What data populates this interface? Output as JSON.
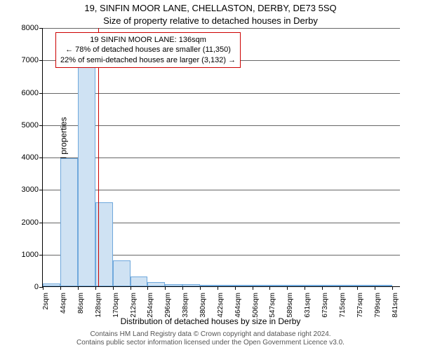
{
  "title_line1": "19, SINFIN MOOR LANE, CHELLASTON, DERBY, DE73 5SQ",
  "title_line2": "Size of property relative to detached houses in Derby",
  "y_axis_label": "Number of detached properties",
  "x_axis_title": "Distribution of detached houses by size in Derby",
  "attribution_line1": "Contains HM Land Registry data © Crown copyright and database right 2024.",
  "attribution_line2": "Contains public sector information licensed under the Open Government Licence v3.0.",
  "chart": {
    "type": "histogram",
    "ylim": [
      0,
      8000
    ],
    "ytick_step": 1000,
    "y_ticks": [
      0,
      1000,
      2000,
      3000,
      4000,
      5000,
      6000,
      7000,
      8000
    ],
    "bar_fill": "#cfe2f3",
    "bar_border": "#6fa8dc",
    "grid_color": "#000000",
    "background_color": "#ffffff",
    "reference_line_color": "#cc0000",
    "reference_value_sqm": 136,
    "x_tick_labels": [
      "2sqm",
      "44sqm",
      "86sqm",
      "128sqm",
      "170sqm",
      "212sqm",
      "254sqm",
      "296sqm",
      "338sqm",
      "380sqm",
      "422sqm",
      "464sqm",
      "506sqm",
      "547sqm",
      "589sqm",
      "631sqm",
      "673sqm",
      "715sqm",
      "757sqm",
      "799sqm",
      "841sqm"
    ],
    "x_tick_step_sqm": 42,
    "x_range_sqm": [
      2,
      862
    ],
    "bars": [
      {
        "x_sqm": 2,
        "count": 80
      },
      {
        "x_sqm": 44,
        "count": 3950
      },
      {
        "x_sqm": 86,
        "count": 6800
      },
      {
        "x_sqm": 128,
        "count": 2600
      },
      {
        "x_sqm": 170,
        "count": 800
      },
      {
        "x_sqm": 212,
        "count": 300
      },
      {
        "x_sqm": 254,
        "count": 120
      },
      {
        "x_sqm": 296,
        "count": 70
      },
      {
        "x_sqm": 338,
        "count": 60
      },
      {
        "x_sqm": 380,
        "count": 40
      },
      {
        "x_sqm": 422,
        "count": 25
      },
      {
        "x_sqm": 464,
        "count": 15
      },
      {
        "x_sqm": 506,
        "count": 10
      },
      {
        "x_sqm": 547,
        "count": 8
      },
      {
        "x_sqm": 589,
        "count": 6
      },
      {
        "x_sqm": 631,
        "count": 5
      },
      {
        "x_sqm": 673,
        "count": 4
      },
      {
        "x_sqm": 715,
        "count": 3
      },
      {
        "x_sqm": 757,
        "count": 2
      },
      {
        "x_sqm": 799,
        "count": 2
      },
      {
        "x_sqm": 841,
        "count": 0
      }
    ]
  },
  "info_box": {
    "line1": "19 SINFIN MOOR LANE: 136sqm",
    "line2": "← 78% of detached houses are smaller (11,350)",
    "line3": "22% of semi-detached houses are larger (3,132) →"
  }
}
